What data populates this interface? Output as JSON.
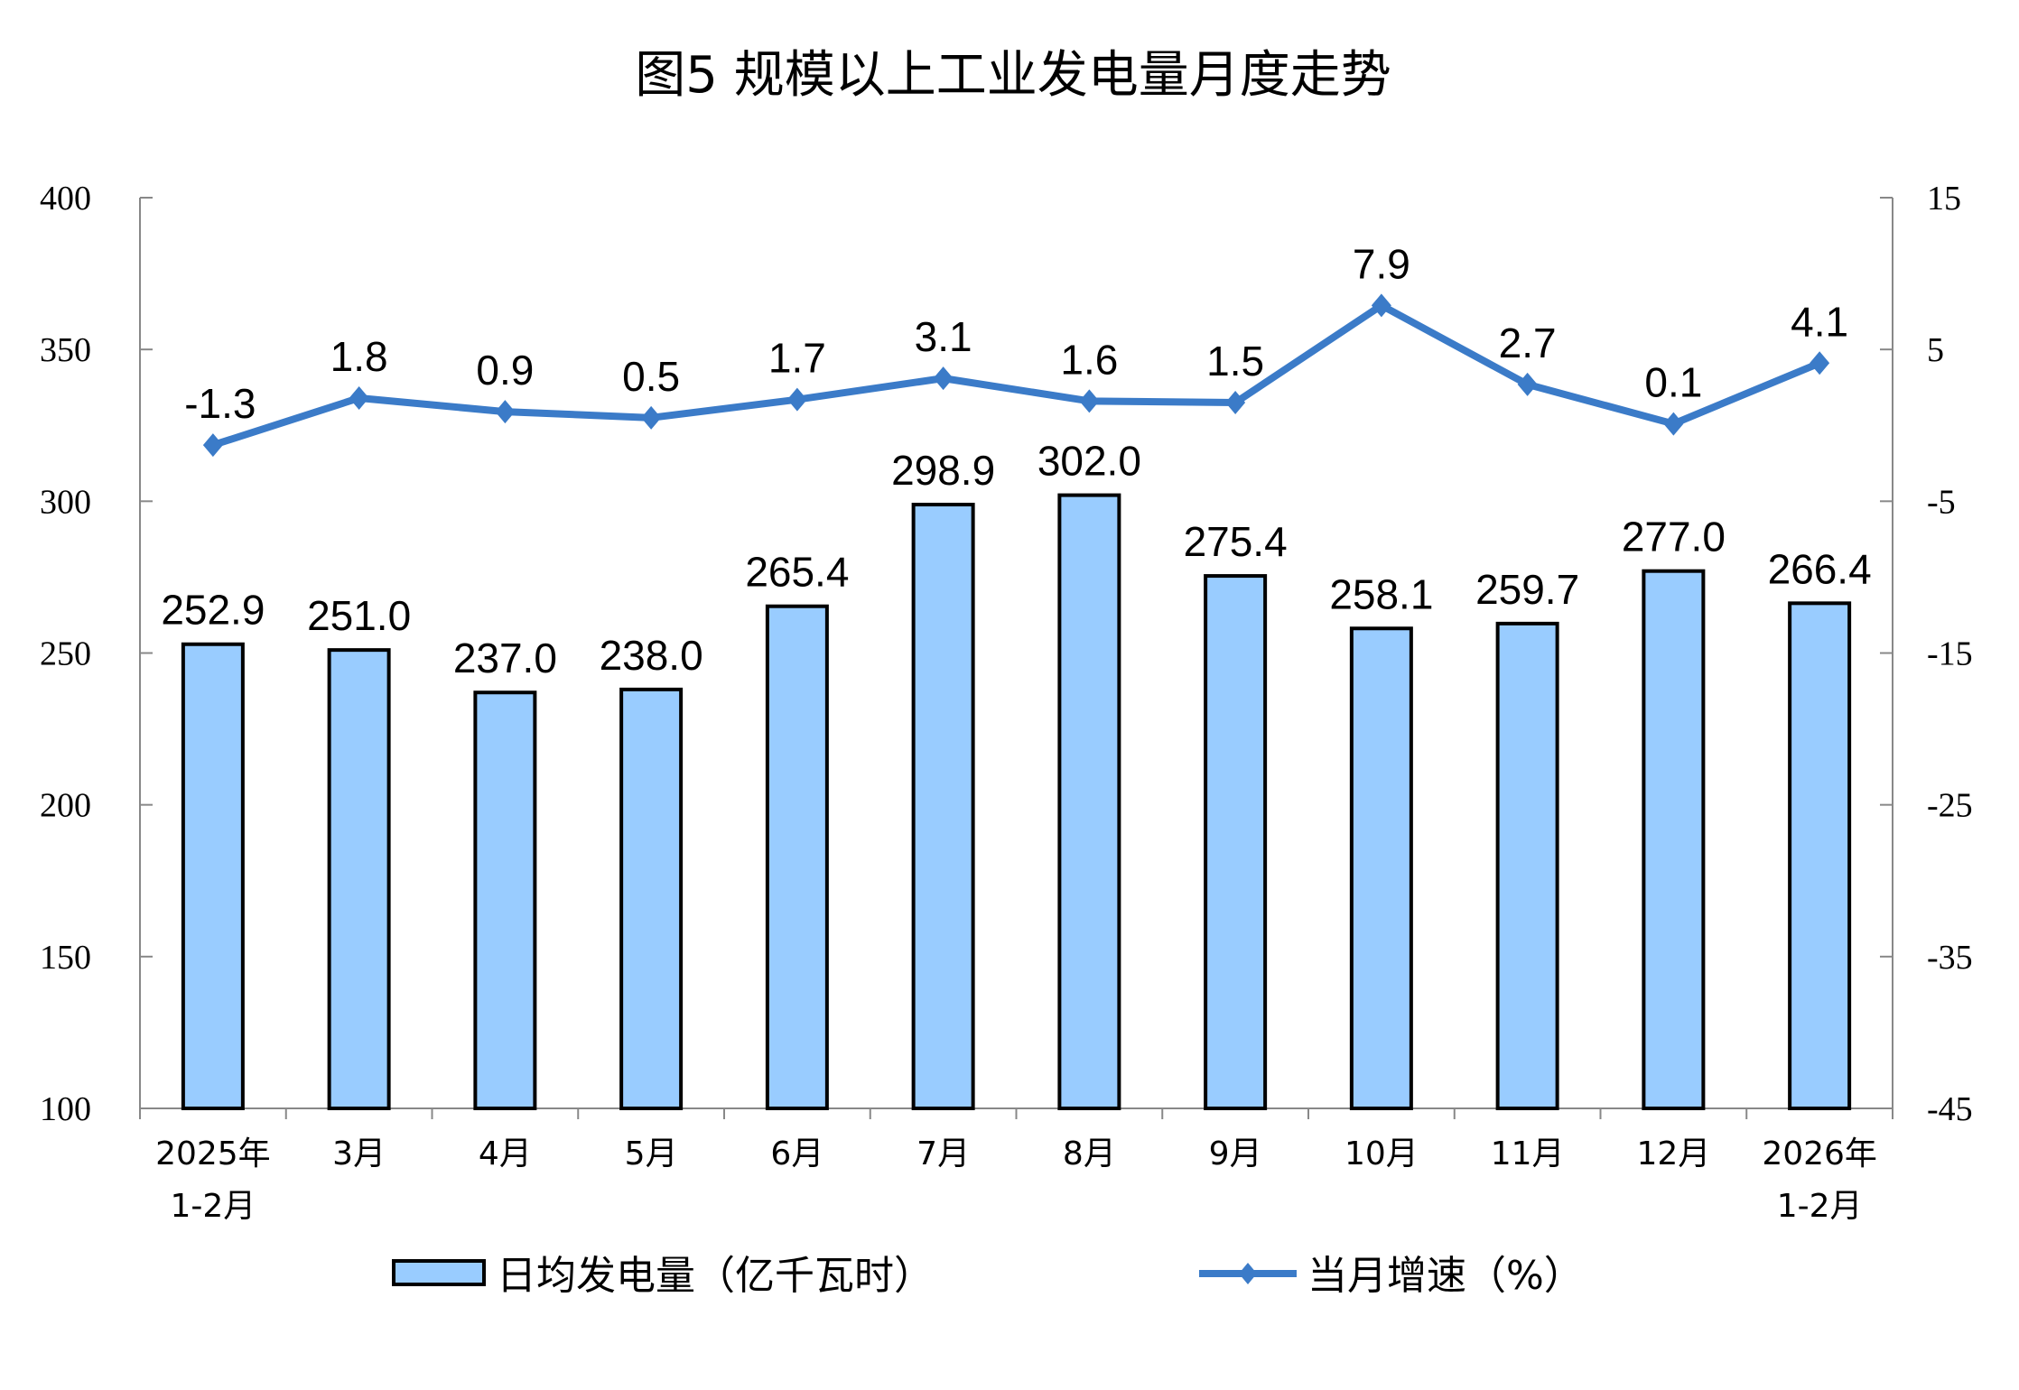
{
  "chart_data": {
    "type": "bar+line",
    "title": "图5  规模以上工业发电量月度走势",
    "categories": [
      [
        "2025年",
        "1-2月"
      ],
      [
        "3月"
      ],
      [
        "4月"
      ],
      [
        "5月"
      ],
      [
        "6月"
      ],
      [
        "7月"
      ],
      [
        "8月"
      ],
      [
        "9月"
      ],
      [
        "10月"
      ],
      [
        "11月"
      ],
      [
        "12月"
      ],
      [
        "2026年",
        "1-2月"
      ]
    ],
    "series": [
      {
        "name": "日均发电量（亿千瓦时）",
        "type": "bar",
        "axis": "left",
        "color": "#99CCFF",
        "values": [
          252.9,
          251.0,
          237.0,
          238.0,
          265.4,
          298.9,
          302.0,
          275.4,
          258.1,
          259.7,
          277.0,
          266.4
        ],
        "labels": [
          "252.9",
          "251.0",
          "237.0",
          "238.0",
          "265.4",
          "298.9",
          "302.0",
          "275.4",
          "258.1",
          "259.7",
          "277.0",
          "266.4"
        ]
      },
      {
        "name": "当月增速（%）",
        "type": "line",
        "axis": "right",
        "color": "#3B7BC8",
        "marker": "diamond",
        "values": [
          -1.3,
          1.8,
          0.9,
          0.5,
          1.7,
          3.1,
          1.6,
          1.5,
          7.9,
          2.7,
          0.1,
          4.1
        ],
        "labels": [
          "-1.3",
          "1.8",
          "0.9",
          "0.5",
          "1.7",
          "3.1",
          "1.6",
          "1.5",
          "7.9",
          "2.7",
          "0.1",
          "4.1"
        ]
      }
    ],
    "left_axis": {
      "ylim": [
        100,
        400
      ],
      "ticks": [
        "100",
        "150",
        "200",
        "250",
        "300",
        "350",
        "400"
      ]
    },
    "right_axis": {
      "ylim": [
        -45,
        15
      ],
      "ticks": [
        "-45",
        "-35",
        "-25",
        "-15",
        "-5",
        "5",
        "15"
      ]
    },
    "grid": false,
    "legend": "bottom"
  }
}
